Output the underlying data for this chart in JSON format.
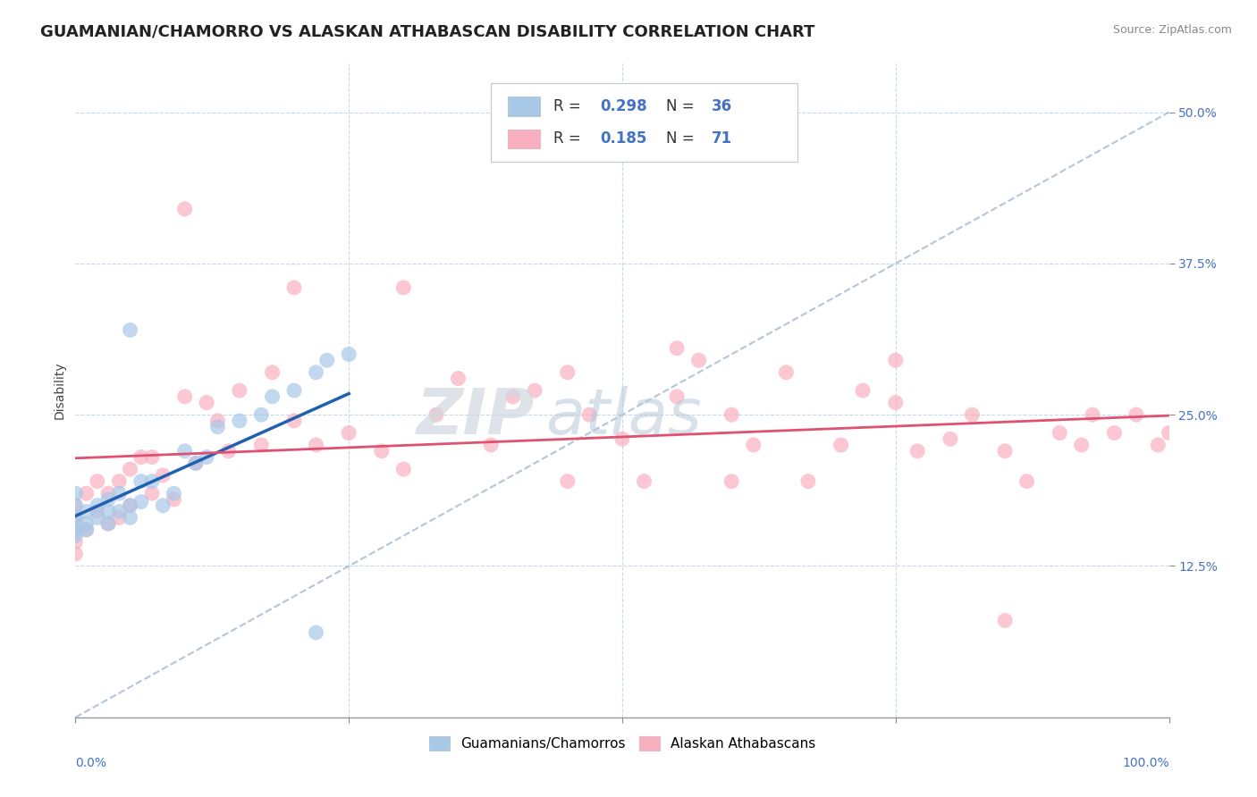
{
  "title": "GUAMANIAN/CHAMORRO VS ALASKAN ATHABASCAN DISABILITY CORRELATION CHART",
  "source": "Source: ZipAtlas.com",
  "ylabel": "Disability",
  "xlim": [
    0.0,
    1.0
  ],
  "ylim": [
    0.0,
    0.54
  ],
  "xticks": [
    0.0,
    0.25,
    0.5,
    0.75,
    1.0
  ],
  "xticklabels_left": "0.0%",
  "xticklabels_right": "100.0%",
  "yticks": [
    0.125,
    0.25,
    0.375,
    0.5
  ],
  "yticklabels": [
    "12.5%",
    "25.0%",
    "37.5%",
    "50.0%"
  ],
  "grid_color": "#c8d8e8",
  "background_color": "#ffffff",
  "blue_R": "0.298",
  "blue_N": "36",
  "pink_R": "0.185",
  "pink_N": "71",
  "blue_color": "#a8c8e8",
  "pink_color": "#f8b0c0",
  "blue_line_color": "#2060b0",
  "pink_line_color": "#e05070",
  "diag_color": "#a0b8d0",
  "legend_label_blue": "Guamanians/Chamorros",
  "legend_label_pink": "Alaskan Athabascans",
  "title_fontsize": 13,
  "axis_fontsize": 10,
  "tick_fontsize": 10,
  "legend_fontsize": 11,
  "source_fontsize": 9,
  "ytick_color": "#4472c4",
  "xtick_color": "#4472c4"
}
